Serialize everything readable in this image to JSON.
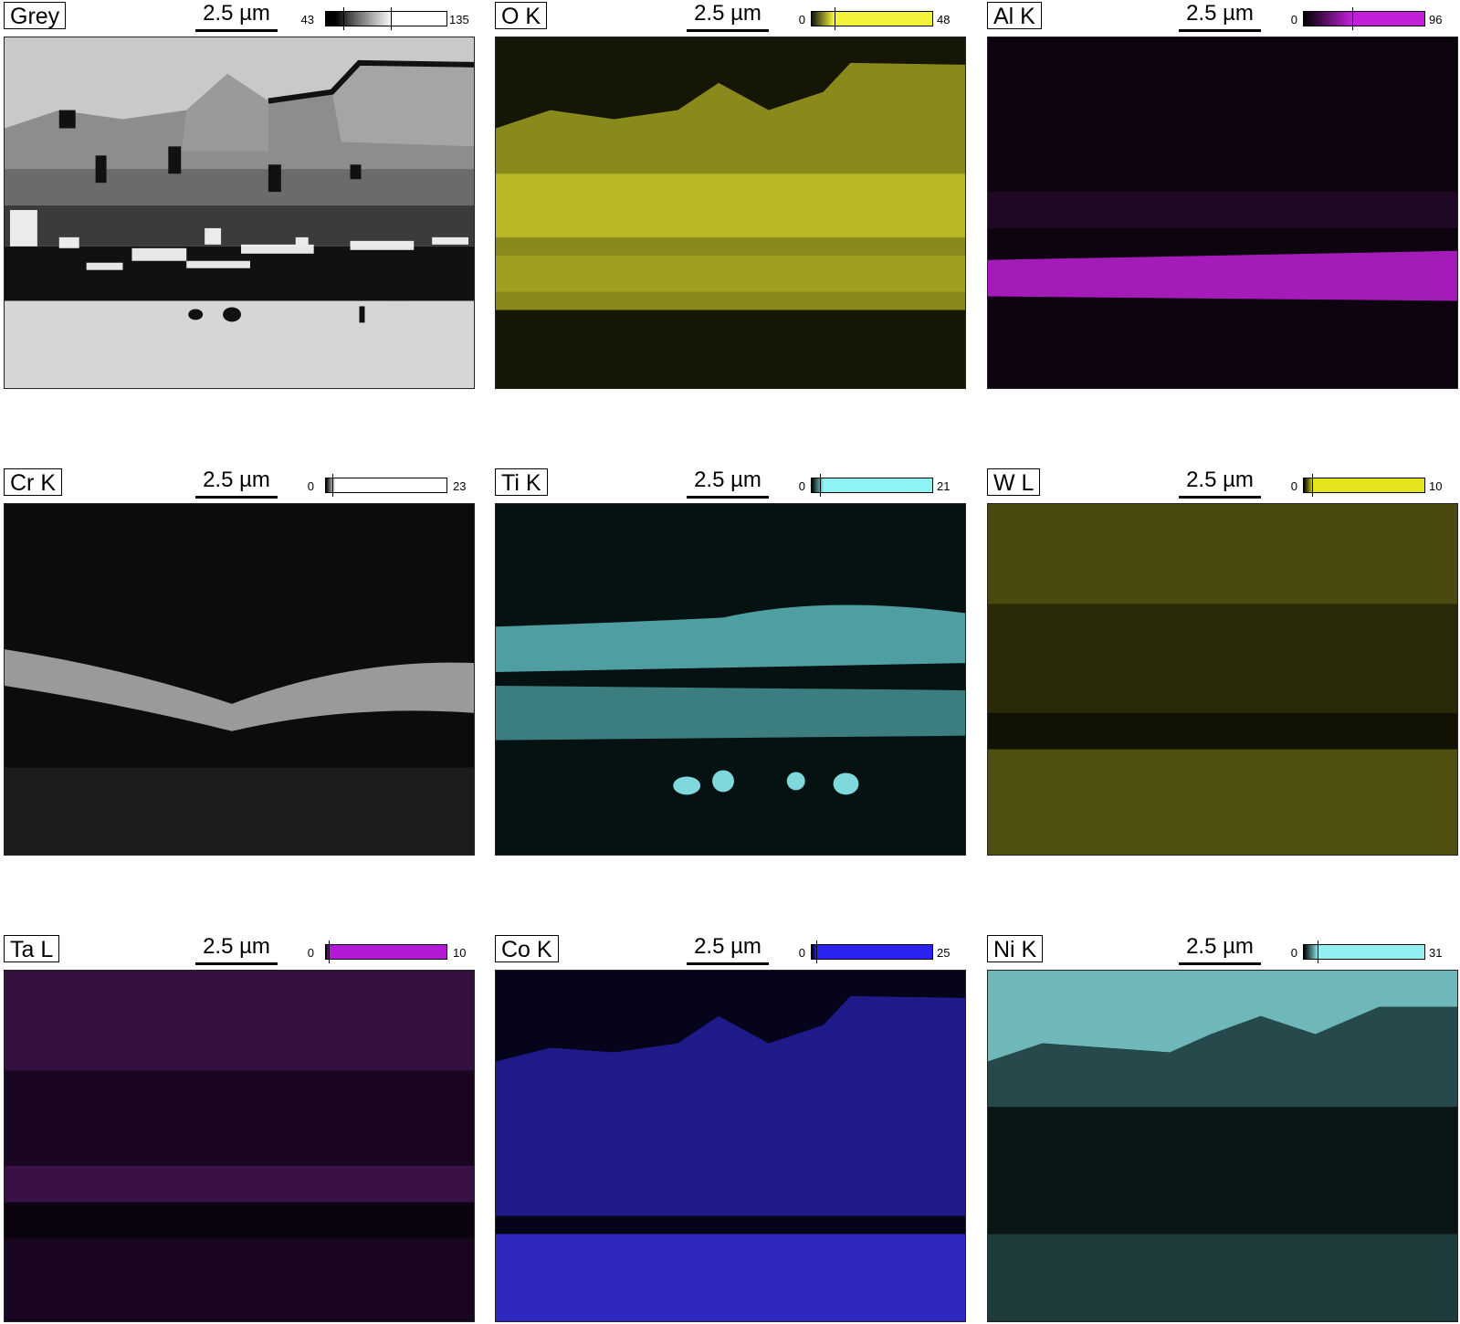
{
  "panels": [
    {
      "label": "Grey",
      "scale": "2.5 µm",
      "min": "43",
      "max": "135",
      "color": "#ffffff",
      "colorbar": "grey"
    },
    {
      "label": "O K",
      "scale": "2.5 µm",
      "min": "0",
      "max": "48",
      "color": "#f2f23a"
    },
    {
      "label": "Al K",
      "scale": "2.5 µm",
      "min": "0",
      "max": "96",
      "color": "#c21fd9"
    },
    {
      "label": "Cr K",
      "scale": "2.5 µm",
      "min": "0",
      "max": "23",
      "color": "#ffffff"
    },
    {
      "label": "Ti K",
      "scale": "2.5 µm",
      "min": "0",
      "max": "21",
      "color": "#8ef3f5"
    },
    {
      "label": "W L",
      "scale": "2.5 µm",
      "min": "0",
      "max": "10",
      "color": "#e4e41f"
    },
    {
      "label": "Ta L",
      "scale": "2.5 µm",
      "min": "0",
      "max": "10",
      "color": "#b21ad6"
    },
    {
      "label": "Co K",
      "scale": "2.5 µm",
      "min": "0",
      "max": "25",
      "color": "#2a23f0"
    },
    {
      "label": "Ni K",
      "scale": "2.5 µm",
      "min": "0",
      "max": "31",
      "color": "#93f0f2"
    }
  ]
}
